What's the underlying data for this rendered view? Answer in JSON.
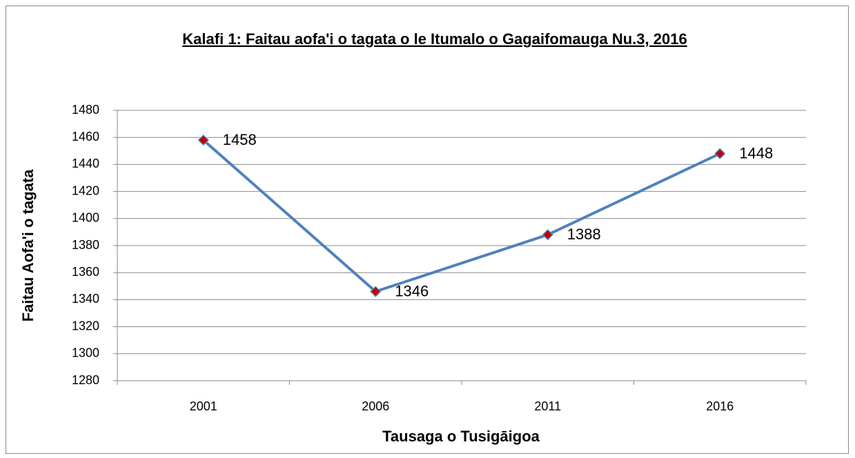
{
  "chart_data": {
    "type": "line",
    "title": "Kalafi 1: Faitau aofa'i o tagata o le Itumalo o Gagaifomauga Nu.3, 2016",
    "x_label": "Tausaga o Tusigāigoa",
    "y_label": "Faitau Aofa'i o tagata",
    "categories": [
      "2001",
      "2006",
      "2011",
      "2016"
    ],
    "series": [
      {
        "name": "Faitau aofa'i",
        "color": "#4f81bd",
        "marker_color": "#c00000",
        "values": [
          1458,
          1346,
          1388,
          1448
        ]
      }
    ],
    "ylim": [
      1280,
      1480
    ],
    "yticks": [
      1280,
      1300,
      1320,
      1340,
      1360,
      1380,
      1400,
      1420,
      1440,
      1460,
      1480
    ],
    "grid": true
  }
}
